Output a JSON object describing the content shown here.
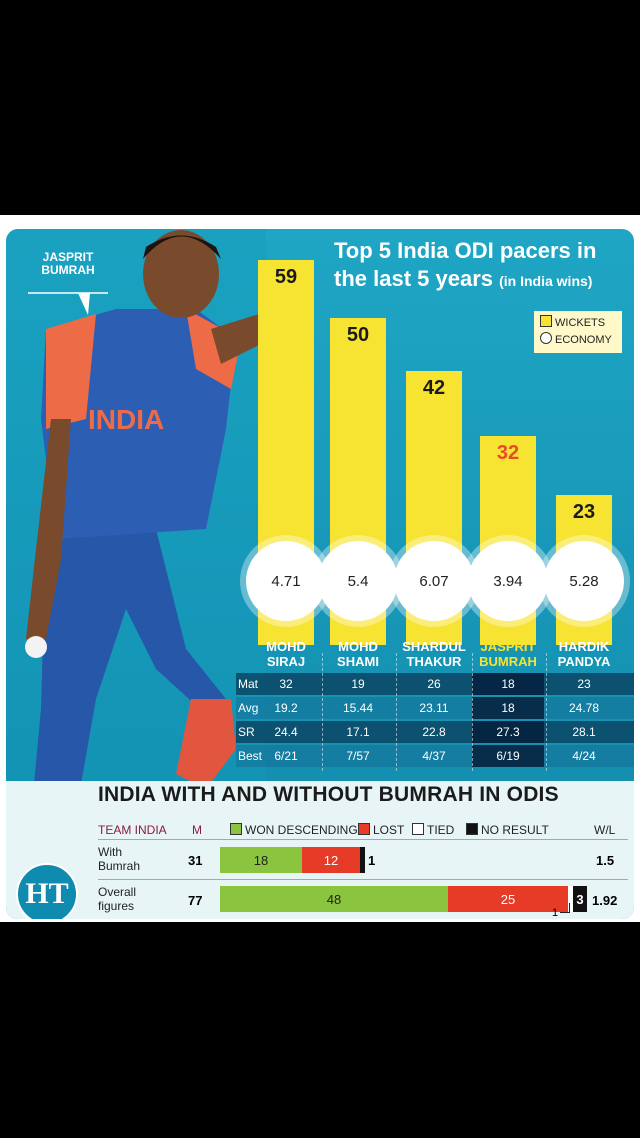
{
  "player_tag": [
    "JASPRIT",
    "BUMRAH"
  ],
  "jersey_text": "INDIA",
  "title": {
    "line1": "Top 5 India ODI pacers in",
    "line2": "the last 5 years",
    "suffix": "(in India wins)"
  },
  "legend": {
    "wickets": "WICKETS",
    "economy": "ECONOMY"
  },
  "colors": {
    "bar": "#f7e332",
    "highlight": "#e84a2b",
    "won": "#8bc53f",
    "lost": "#e63b26",
    "no_result": "#111111",
    "background": "#1a9dbd"
  },
  "chart_data": {
    "type": "bar",
    "categories": [
      "MOHD SIRAJ",
      "MOHD SHAMI",
      "SHARDUL THAKUR",
      "JASPRIT BUMRAH",
      "HARDIK PANDYA"
    ],
    "series": [
      {
        "name": "WICKETS",
        "values": [
          59,
          50,
          42,
          32,
          23
        ]
      },
      {
        "name": "ECONOMY",
        "values": [
          "4.71",
          "5.4",
          "6.07",
          "3.94",
          "5.28"
        ]
      }
    ],
    "highlight_index": 3,
    "ylim": [
      0,
      60
    ],
    "legend_position": "top-right"
  },
  "players": [
    {
      "first": "MOHD",
      "last": "SIRAJ"
    },
    {
      "first": "MOHD",
      "last": "SHAMI"
    },
    {
      "first": "SHARDUL",
      "last": "THAKUR"
    },
    {
      "first": "JASPRIT",
      "last": "BUMRAH"
    },
    {
      "first": "HARDIK",
      "last": "PANDYA"
    }
  ],
  "stats": [
    {
      "label": "Mat",
      "values": [
        "32",
        "19",
        "26",
        "18",
        "23"
      ]
    },
    {
      "label": "Avg",
      "values": [
        "19.2",
        "15.44",
        "23.11",
        "18",
        "24.78"
      ]
    },
    {
      "label": "SR",
      "values": [
        "24.4",
        "17.1",
        "22.8",
        "27.3",
        "28.1"
      ]
    },
    {
      "label": "Best",
      "values": [
        "6/21",
        "7/57",
        "4/37",
        "6/19",
        "4/24"
      ]
    }
  ],
  "bottom": {
    "title": "INDIA WITH AND WITHOUT BUMRAH IN ODIS",
    "headers": {
      "team": "TEAM INDIA",
      "m": "M",
      "won": "WON DESCENDING",
      "lost": "LOST",
      "tied": "TIED",
      "no_result": "NO RESULT",
      "wl": "W/L"
    },
    "rows": [
      {
        "label1": "With",
        "label2": "Bumrah",
        "m": "31",
        "won": "18",
        "lost": "12",
        "tied": "",
        "nr": "1",
        "wl": "1.5"
      },
      {
        "label1": "Overall",
        "label2": "figures",
        "m": "77",
        "won": "48",
        "lost": "25",
        "tied": "1",
        "nr": "3",
        "wl": "1.92"
      }
    ]
  },
  "logo": "HT"
}
